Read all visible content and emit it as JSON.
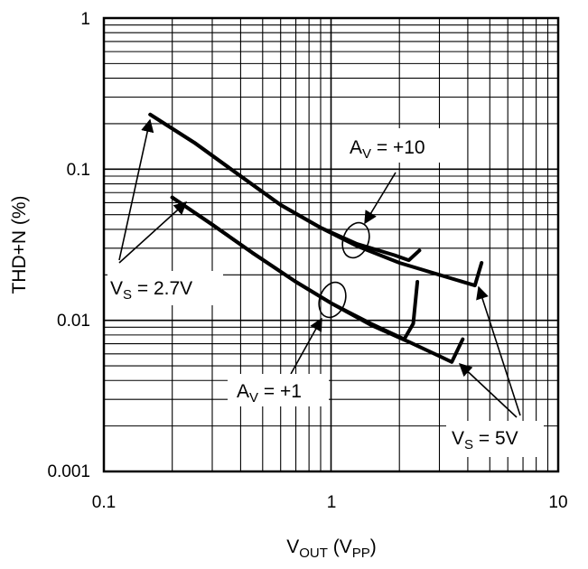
{
  "chart_data": {
    "type": "line",
    "x_scale": "log",
    "y_scale": "log",
    "xlim": [
      0.1,
      10
    ],
    "ylim": [
      0.001,
      1
    ],
    "grid": true,
    "xlabel": {
      "main": "V",
      "sub": "OUT",
      "mid": " (V",
      "sub2": "PP",
      "end": ")"
    },
    "ylabel": "THD+N (%)",
    "x_ticks": [
      {
        "value": 0.1,
        "label": "0.1"
      },
      {
        "value": 1,
        "label": "1"
      },
      {
        "value": 10,
        "label": "10"
      }
    ],
    "y_ticks": [
      {
        "value": 1,
        "label": "1"
      },
      {
        "value": 0.1,
        "label": "0.1"
      },
      {
        "value": 0.01,
        "label": "0.01"
      },
      {
        "value": 0.001,
        "label": "0.001"
      }
    ],
    "series": [
      {
        "x": [
          0.16,
          0.25,
          0.4,
          0.6,
          0.9,
          1.3,
          1.9,
          2.2,
          2.45
        ],
        "y": [
          0.23,
          0.15,
          0.09,
          0.058,
          0.041,
          0.032,
          0.027,
          0.025,
          0.029
        ]
      },
      {
        "x": [
          0.16,
          0.25,
          0.4,
          0.6,
          0.9,
          1.3,
          2.0,
          3.0,
          4.3,
          4.6
        ],
        "y": [
          0.23,
          0.15,
          0.09,
          0.058,
          0.041,
          0.031,
          0.024,
          0.02,
          0.017,
          0.024
        ]
      },
      {
        "x": [
          0.2,
          0.3,
          0.45,
          0.7,
          1.0,
          1.5,
          2.1,
          2.3,
          2.4
        ],
        "y": [
          0.065,
          0.043,
          0.028,
          0.018,
          0.013,
          0.0095,
          0.0075,
          0.0095,
          0.018
        ]
      },
      {
        "x": [
          0.2,
          0.3,
          0.45,
          0.7,
          1.0,
          1.5,
          2.2,
          3.0,
          3.4,
          3.8
        ],
        "y": [
          0.065,
          0.043,
          0.028,
          0.018,
          0.013,
          0.0093,
          0.0072,
          0.0058,
          0.0053,
          0.0075
        ]
      }
    ],
    "annotations": {
      "av10": {
        "main": "A",
        "sub": "V",
        "rest": " = +10"
      },
      "av1": {
        "main": "A",
        "sub": "V",
        "rest": " = +1"
      },
      "vs27": {
        "main": "V",
        "sub": "S",
        "rest": " = 2.7V"
      },
      "vs5": {
        "main": "V",
        "sub": "S",
        "rest": " = 5V"
      }
    }
  }
}
